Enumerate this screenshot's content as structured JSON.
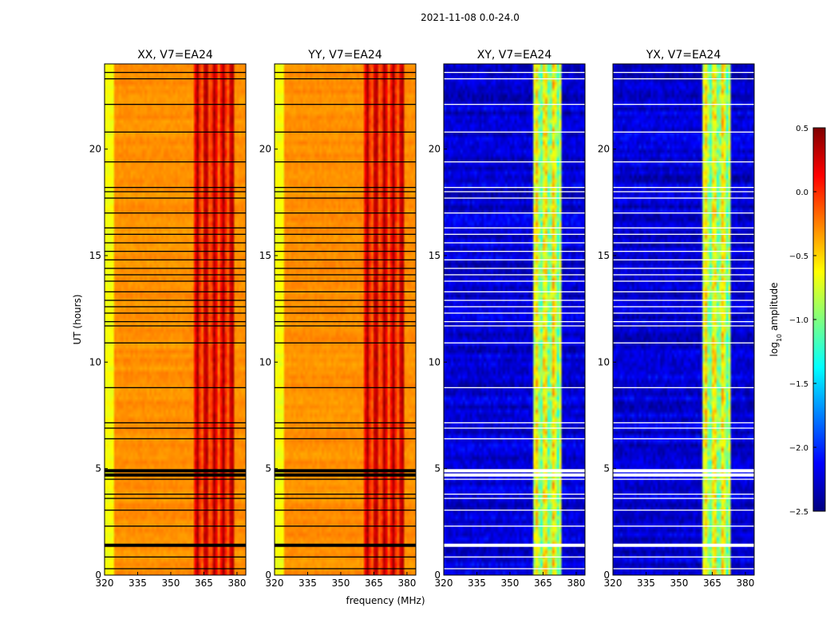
{
  "figure": {
    "suptitle": "2021-11-08 0.0-24.0",
    "xlabel": "frequency (MHz)",
    "ylabel": "UT (hours)"
  },
  "colors": {
    "jet": [
      "#00007f",
      "#0000ff",
      "#007fff",
      "#00ffff",
      "#7fff7f",
      "#ffff00",
      "#ff7f00",
      "#ff0000",
      "#7f0000"
    ],
    "flag_black": "#000000",
    "flag_white": "#ffffff"
  },
  "chart_data": {
    "type": "heatmap",
    "title": "2021-11-08 0.0-24.0",
    "x_range": [
      320,
      384
    ],
    "y_range": [
      0,
      24
    ],
    "x_ticks": [
      320,
      335,
      350,
      365,
      380
    ],
    "x_tick_labels": [
      "320",
      "335",
      "350",
      "365",
      "380"
    ],
    "y_ticks": [
      0,
      5,
      10,
      15,
      20
    ],
    "y_tick_labels": [
      "0",
      "5",
      "10",
      "15",
      "20"
    ],
    "panels": [
      {
        "title": "XX, V7=EA24",
        "pol": "XX",
        "base": -0.3,
        "band_base": 0.1,
        "band_range": [
          361,
          379
        ],
        "flag_color": "black",
        "noise": 0.08
      },
      {
        "title": "YY, V7=EA24",
        "pol": "YY",
        "base": -0.3,
        "band_base": 0.1,
        "band_range": [
          361,
          379
        ],
        "flag_color": "black",
        "noise": 0.08
      },
      {
        "title": "XY, V7=EA24",
        "pol": "XY",
        "base": -2.25,
        "band_base": -0.8,
        "band_range": [
          361,
          373
        ],
        "flag_color": "white",
        "noise": 0.25
      },
      {
        "title": "YX, V7=EA24",
        "pol": "YX",
        "base": -2.25,
        "band_base": -0.8,
        "band_range": [
          361,
          373
        ],
        "flag_color": "white",
        "noise": 0.25
      }
    ],
    "flagged_ut_rows": [
      0.3,
      0.85,
      1.4,
      2.3,
      3.05,
      3.6,
      3.8,
      4.5,
      4.7,
      4.9,
      6.4,
      6.9,
      7.15,
      8.8,
      10.9,
      11.7,
      11.9,
      12.3,
      12.6,
      12.9,
      13.3,
      13.8,
      14.1,
      14.4,
      14.8,
      15.2,
      15.6,
      16.0,
      16.3,
      17.0,
      17.7,
      18.0,
      18.2,
      19.4,
      20.8,
      22.1,
      23.3,
      23.6
    ],
    "colorbar": {
      "label": "log10 amplitude",
      "label_main": "log",
      "label_sub": "10",
      "label_tail": " amplitude",
      "range": [
        -2.5,
        0.5
      ],
      "ticks": [
        0.5,
        0.0,
        -0.5,
        -1.0,
        -1.5,
        -2.0,
        -2.5
      ],
      "tick_labels": [
        "0.5",
        "0.0",
        "−0.5",
        "−1.0",
        "−1.5",
        "−2.0",
        "−2.5"
      ],
      "colormap": "jet"
    }
  }
}
